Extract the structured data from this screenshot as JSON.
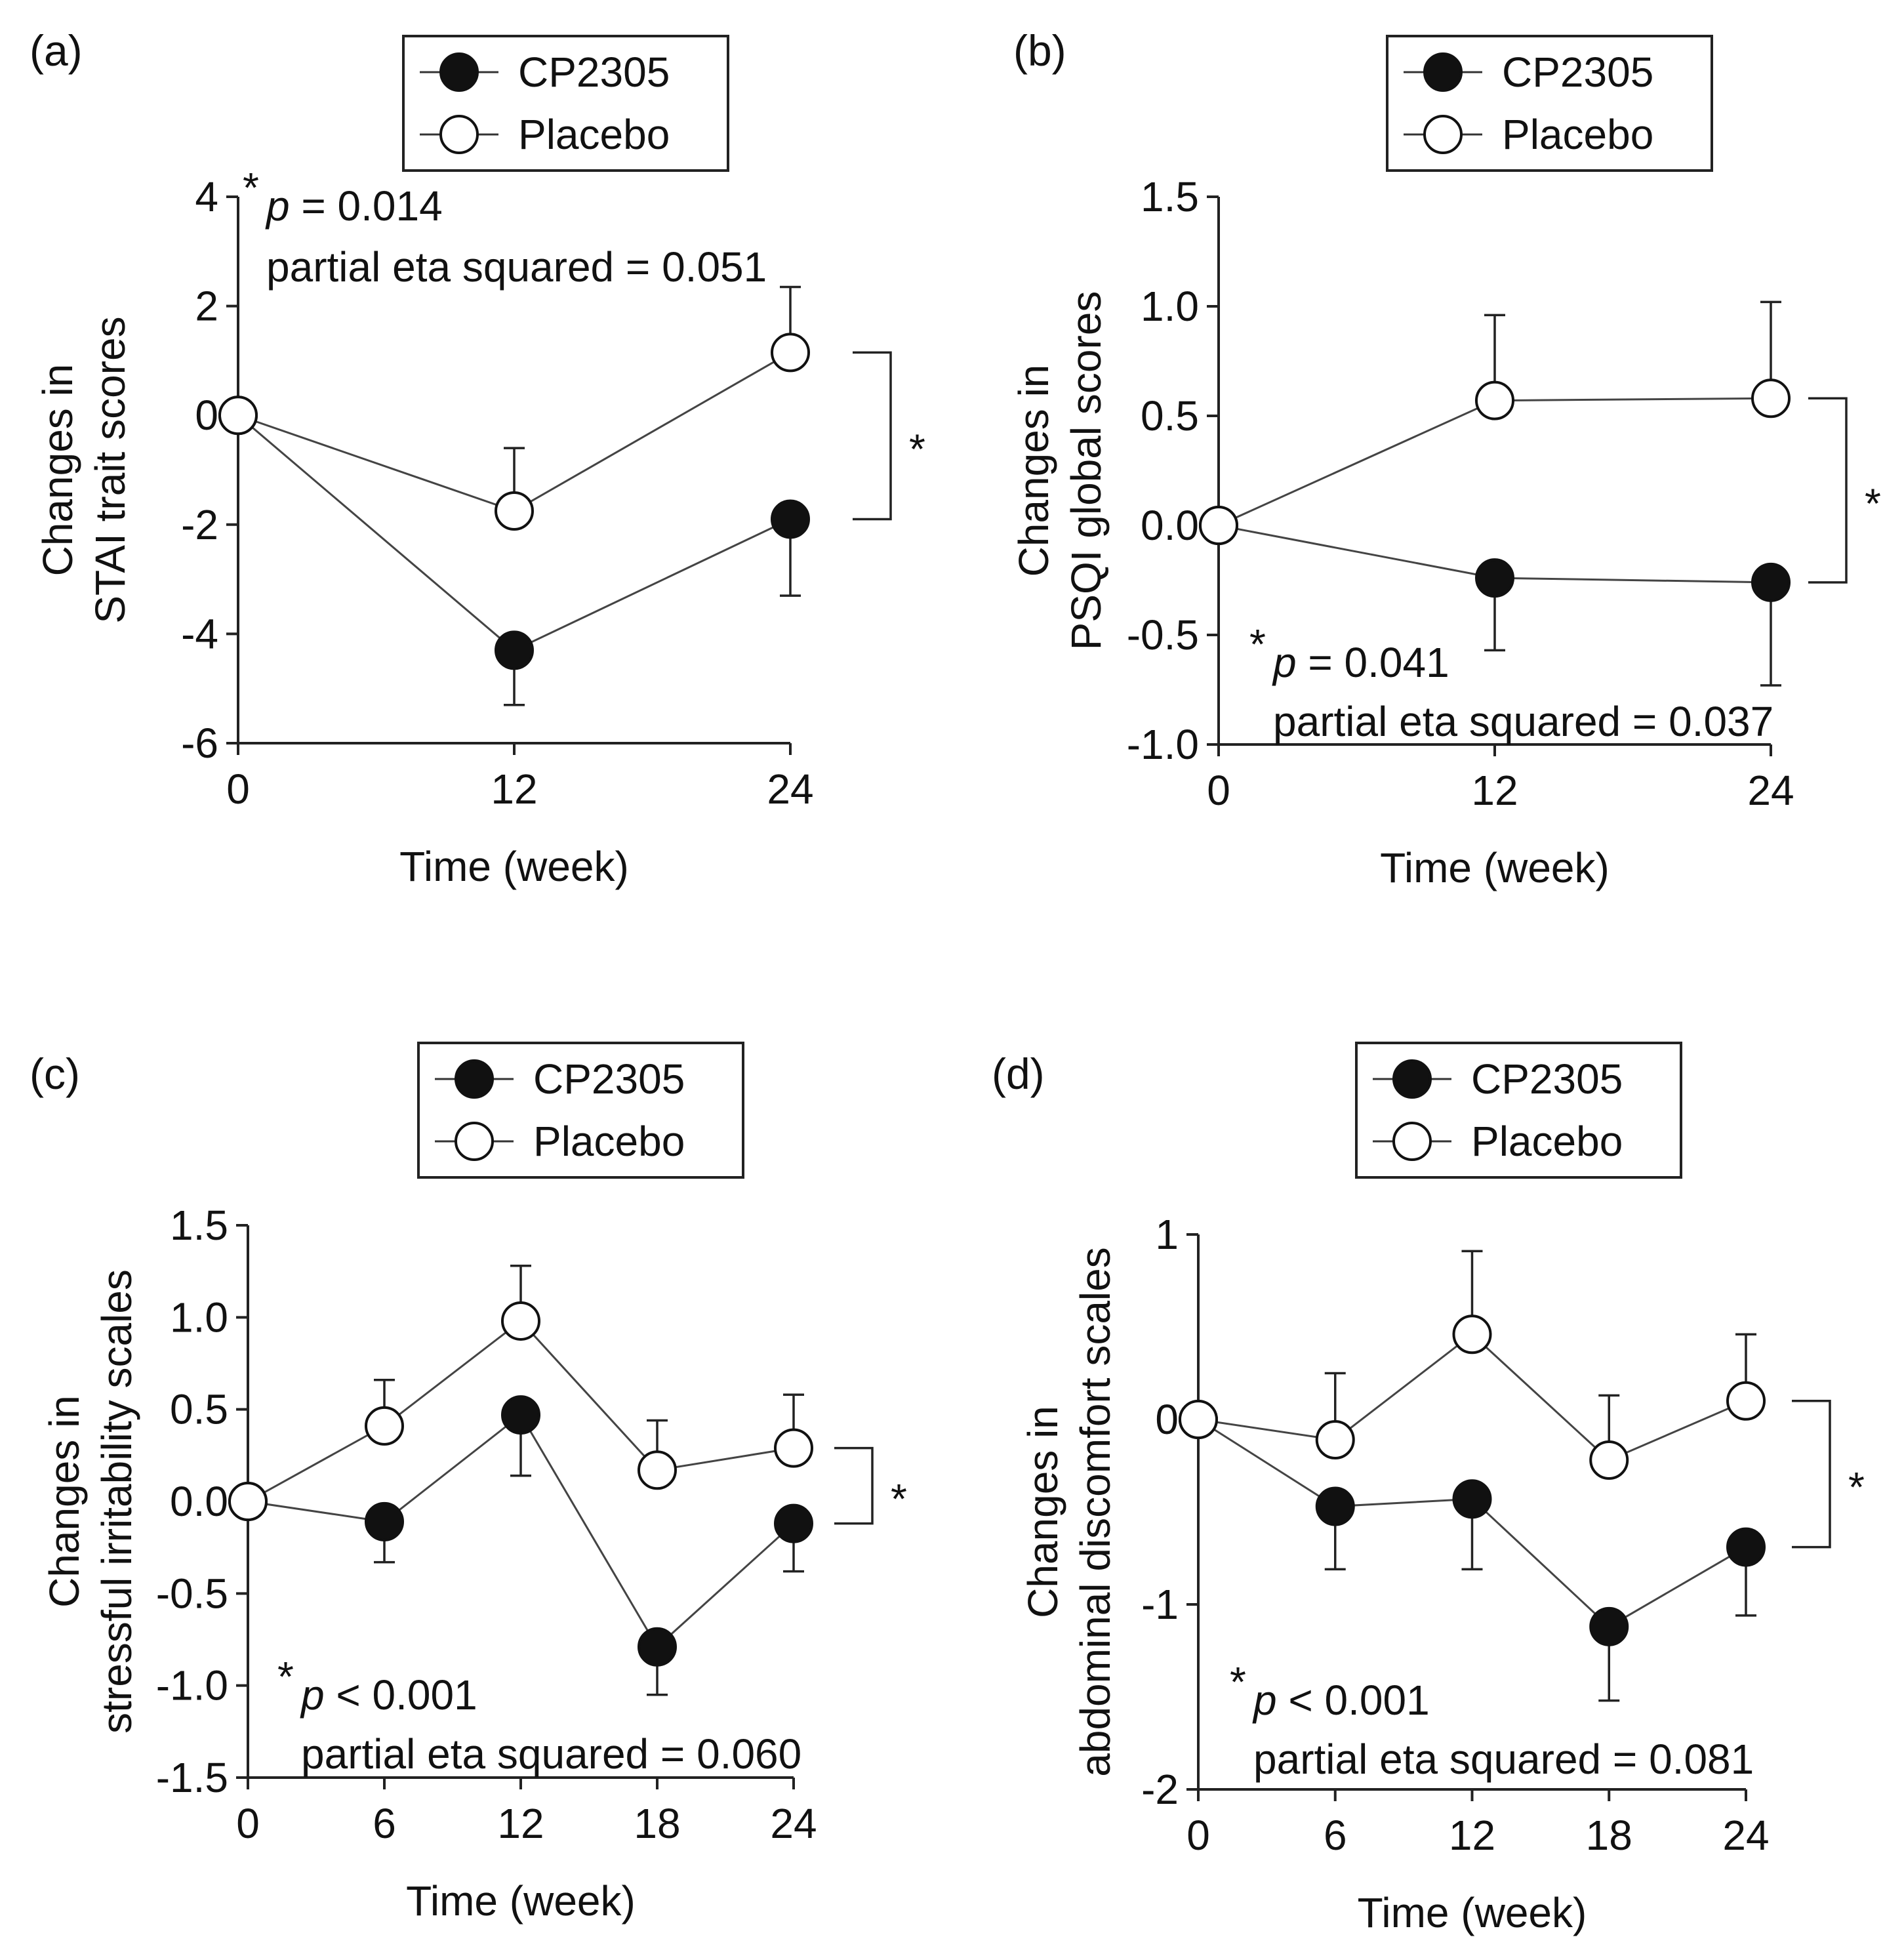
{
  "chart_data": [
    {
      "type": "line",
      "panel_label": "(a)",
      "xlabel": "Time (week)",
      "ylabel_lines": [
        "Changes in",
        "STAI trait scores"
      ],
      "x": [
        0,
        12,
        24
      ],
      "x_ticks": [
        "0",
        "12",
        "24"
      ],
      "xlim": [
        0,
        24
      ],
      "y_ticks": [
        "4",
        "2",
        "0",
        "-2",
        "-4",
        "-6"
      ],
      "y_tick_values": [
        4,
        2,
        0,
        -2,
        -4,
        -6
      ],
      "ylim": [
        -6,
        4
      ],
      "legend": [
        "CP2305",
        "Placebo"
      ],
      "series": [
        {
          "name": "CP2305",
          "marker": "filled",
          "values": [
            0,
            -4.3,
            -1.9
          ],
          "error": [
            0,
            1.0,
            1.4
          ],
          "error_dir": "down"
        },
        {
          "name": "Placebo",
          "marker": "open",
          "values": [
            0,
            -1.75,
            1.15
          ],
          "error": [
            0,
            1.15,
            1.2
          ],
          "error_dir": "up"
        }
      ],
      "stat_star": "*",
      "stat_p_italic": "p",
      "stat_p_rest": " = 0.014",
      "stat_eta": "partial eta squared = 0.051",
      "stat_position": "top",
      "significance_marker": "*"
    },
    {
      "type": "line",
      "panel_label": "(b)",
      "xlabel": "Time (week)",
      "ylabel_lines": [
        "Changes in",
        "PSQI global scores"
      ],
      "x": [
        0,
        12,
        24
      ],
      "x_ticks": [
        "0",
        "12",
        "24"
      ],
      "xlim": [
        0,
        24
      ],
      "y_ticks": [
        "1.5",
        "1.0",
        "0.5",
        "0.0",
        "-0.5",
        "-1.0"
      ],
      "y_tick_values": [
        1.5,
        1.0,
        0.5,
        0.0,
        -0.5,
        -1.0
      ],
      "ylim": [
        -1.0,
        1.5
      ],
      "legend": [
        "CP2305",
        "Placebo"
      ],
      "series": [
        {
          "name": "CP2305",
          "marker": "filled",
          "values": [
            0,
            -0.24,
            -0.26
          ],
          "error": [
            0,
            0.33,
            0.47
          ],
          "error_dir": "down"
        },
        {
          "name": "Placebo",
          "marker": "open",
          "values": [
            0,
            0.57,
            0.58
          ],
          "error": [
            0,
            0.39,
            0.44
          ],
          "error_dir": "up"
        }
      ],
      "stat_star": "*",
      "stat_p_italic": "p",
      "stat_p_rest": " = 0.041",
      "stat_eta": "partial eta squared = 0.037",
      "stat_position": "bottom",
      "significance_marker": "*"
    },
    {
      "type": "line",
      "panel_label": "(c)",
      "xlabel": "Time (week)",
      "ylabel_lines": [
        "Changes in",
        "stressful irritability scales"
      ],
      "x": [
        0,
        6,
        12,
        18,
        24
      ],
      "x_ticks": [
        "0",
        "6",
        "12",
        "18",
        "24"
      ],
      "xlim": [
        0,
        24
      ],
      "y_ticks": [
        "1.5",
        "1.0",
        "0.5",
        "0.0",
        "-0.5",
        "-1.0",
        "-1.5"
      ],
      "y_tick_values": [
        1.5,
        1.0,
        0.5,
        0.0,
        -0.5,
        -1.0,
        -1.5
      ],
      "ylim": [
        -1.5,
        1.5
      ],
      "legend": [
        "CP2305",
        "Placebo"
      ],
      "series": [
        {
          "name": "CP2305",
          "marker": "filled",
          "values": [
            0,
            -0.11,
            0.47,
            -0.79,
            -0.12
          ],
          "error": [
            0,
            0.22,
            0.33,
            0.26,
            0.26
          ],
          "error_dir": "down"
        },
        {
          "name": "Placebo",
          "marker": "open",
          "values": [
            0,
            0.41,
            0.98,
            0.17,
            0.29
          ],
          "error": [
            0,
            0.25,
            0.3,
            0.27,
            0.29
          ],
          "error_dir": "up"
        }
      ],
      "stat_star": "*",
      "stat_p_italic": "p",
      "stat_p_rest": " < 0.001",
      "stat_eta": "partial eta squared = 0.060",
      "stat_position": "bottom",
      "significance_marker": "*"
    },
    {
      "type": "line",
      "panel_label": "(d)",
      "xlabel": "Time (week)",
      "ylabel_lines": [
        "Changes in",
        "abdominal discomfort scales"
      ],
      "x": [
        0,
        6,
        12,
        18,
        24
      ],
      "x_ticks": [
        "0",
        "6",
        "12",
        "18",
        "24"
      ],
      "xlim": [
        0,
        24
      ],
      "y_ticks": [
        "1",
        "0",
        "-1",
        "-2"
      ],
      "y_tick_values": [
        1,
        0,
        -1,
        -2
      ],
      "ylim": [
        -2,
        1
      ],
      "legend": [
        "CP2305",
        "Placebo"
      ],
      "series": [
        {
          "name": "CP2305",
          "marker": "filled",
          "values": [
            0,
            -0.47,
            -0.43,
            -1.12,
            -0.69
          ],
          "error": [
            0,
            0.34,
            0.38,
            0.4,
            0.37
          ],
          "error_dir": "down"
        },
        {
          "name": "Placebo",
          "marker": "open",
          "values": [
            0,
            -0.11,
            0.46,
            -0.22,
            0.1
          ],
          "error": [
            0,
            0.36,
            0.45,
            0.35,
            0.36
          ],
          "error_dir": "up"
        }
      ],
      "stat_star": "*",
      "stat_p_italic": "p",
      "stat_p_rest": " < 0.001",
      "stat_eta": "partial eta squared = 0.081",
      "stat_position": "bottom",
      "significance_marker": "*"
    }
  ]
}
